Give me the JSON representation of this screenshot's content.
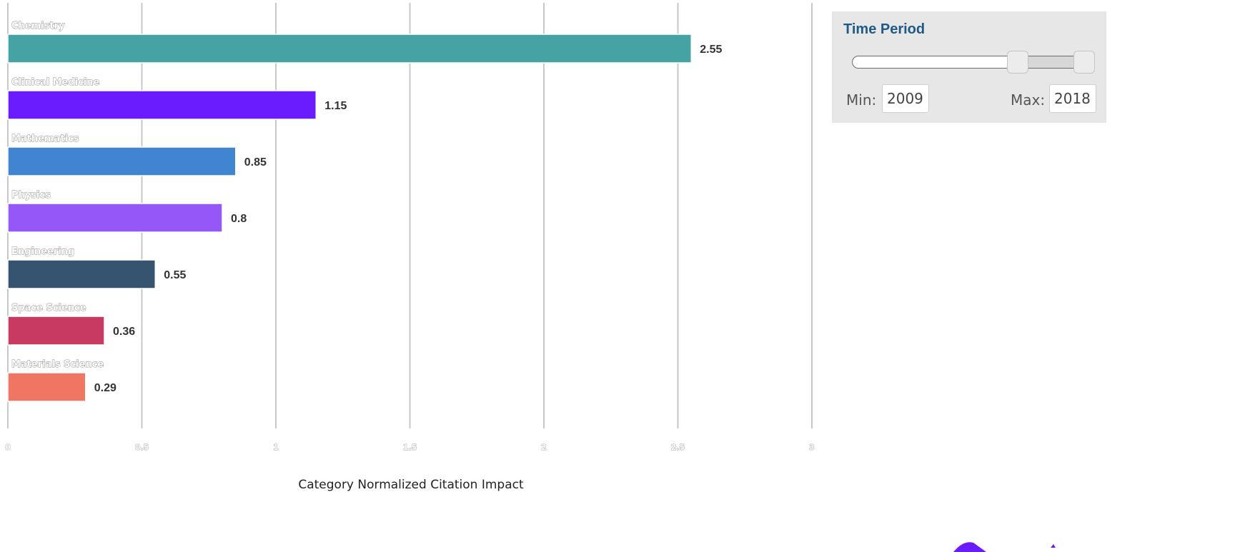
{
  "chart_data": {
    "type": "bar",
    "orientation": "horizontal",
    "categories": [
      "Chemistry",
      "Clinical Medicine",
      "Mathematics",
      "Physics",
      "Engineering",
      "Space Science",
      "Materials Science"
    ],
    "values": [
      2.55,
      1.15,
      0.85,
      0.8,
      0.55,
      0.36,
      0.29
    ],
    "value_labels": [
      "2.55",
      "1.15",
      "0.85",
      "0.8",
      "0.55",
      "0.36",
      "0.29"
    ],
    "colors": [
      "#45a3a3",
      "#6a1cff",
      "#3f85cf",
      "#9657f8",
      "#36536f",
      "#c63b5f",
      "#f07562"
    ],
    "xlabel": "Category Normalized Citation Impact",
    "xlim": [
      0,
      3
    ],
    "xticks": [
      0,
      0.5,
      1,
      1.5,
      2,
      2.5,
      3
    ],
    "xtick_labels": [
      "0",
      "0.5",
      "1",
      "1.5",
      "2",
      "2.5",
      "3"
    ],
    "grid": "vertical"
  },
  "time_period": {
    "title": "Time Period",
    "min_label": "Min:",
    "max_label": "Max:",
    "min_value": "2009",
    "max_value": "2018",
    "slider_low_fraction": 0.7,
    "slider_high_fraction": 1.0
  },
  "colors": {
    "accent_purple": "#6a1cff",
    "panel_bg": "#e7e7e7",
    "panel_title": "#1f5a87"
  }
}
